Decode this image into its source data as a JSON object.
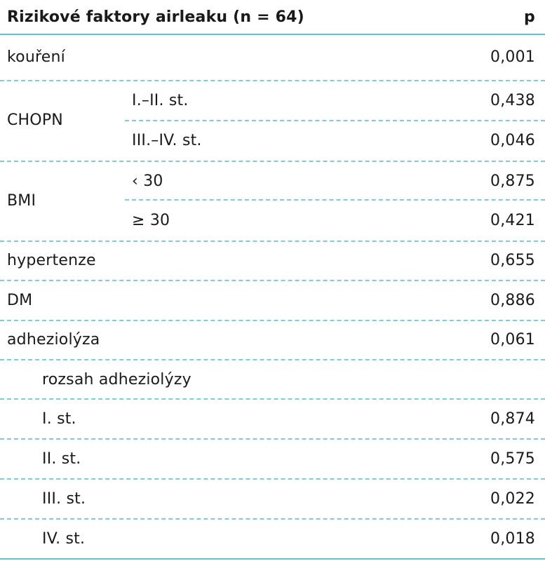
{
  "header": {
    "title": "Rizikové faktory airleaku (n = 64)",
    "p": "p"
  },
  "rows": {
    "koureni": {
      "label": "kouření",
      "p": "0,001"
    },
    "chopn": {
      "label": "CHOPN",
      "sub1": "I.–II. st.",
      "p1": "0,438",
      "sub2": "III.–IV. st.",
      "p2": "0,046"
    },
    "bmi": {
      "label": "BMI",
      "sub1": "‹ 30",
      "p1": "0,875",
      "sub2": "≥ 30",
      "p2": "0,421"
    },
    "hypertenze": {
      "label": "hypertenze",
      "p": "0,655"
    },
    "dm": {
      "label": "DM",
      "p": "0,886"
    },
    "adheziolyza": {
      "label": "adheziolýza",
      "p": "0,061"
    },
    "rozsah": {
      "label": "rozsah adheziolýzy"
    },
    "st1": {
      "label": "I. st.",
      "p": "0,874"
    },
    "st2": {
      "label": "II. st.",
      "p": "0,575"
    },
    "st3": {
      "label": "III. st.",
      "p": "0,022"
    },
    "st4": {
      "label": "IV. st.",
      "p": "0,018"
    }
  }
}
